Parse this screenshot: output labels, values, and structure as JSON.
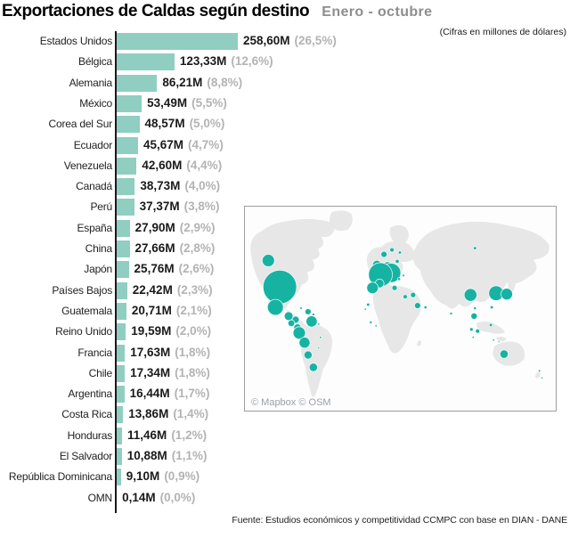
{
  "header": {
    "title": "Exportaciones de Caldas según destino",
    "period": "Enero - octubre",
    "units_note": "(Cifras en millones de dólares)"
  },
  "chart_data": {
    "type": "bar",
    "orientation": "horizontal",
    "title": "Exportaciones de Caldas según destino",
    "subtitle": "Enero - octubre",
    "units": "millones de dólares",
    "xlabel": "",
    "ylabel": "",
    "xlim": [
      0,
      260
    ],
    "grid": false,
    "legend": false,
    "bar_color": "#8FCEC1",
    "categories": [
      "Estados Unidos",
      "Bélgica",
      "Alemania",
      "México",
      "Corea del Sur",
      "Ecuador",
      "Venezuela",
      "Canadá",
      "Perú",
      "España",
      "China",
      "Japón",
      "Países Bajos",
      "Guatemala",
      "Reino Unido",
      "Francia",
      "Chile",
      "Argentina",
      "Costa Rica",
      "Honduras",
      "El Salvador",
      "República Dominicana",
      "OMN"
    ],
    "values": [
      258.6,
      123.33,
      86.21,
      53.49,
      48.57,
      45.67,
      42.6,
      38.73,
      37.37,
      27.9,
      27.66,
      25.76,
      22.42,
      20.71,
      19.59,
      17.63,
      17.34,
      16.44,
      13.86,
      11.46,
      10.88,
      9.1,
      0.14
    ],
    "value_labels": [
      "258,60M",
      "123,33M",
      "86,21M",
      "53,49M",
      "48,57M",
      "45,67M",
      "42,60M",
      "38,73M",
      "37,37M",
      "27,90M",
      "27,66M",
      "25,76M",
      "22,42M",
      "20,71M",
      "19,59M",
      "17,63M",
      "17,34M",
      "16,44M",
      "13,86M",
      "11,46M",
      "10,88M",
      "9,10M",
      "0,14M"
    ],
    "pct_labels": [
      "(26,5%)",
      "(12,6%)",
      "(8,8%)",
      "(5,5%)",
      "(5,0%)",
      "(4,7%)",
      "(4,4%)",
      "(4,0%)",
      "(3,8%)",
      "(2,9%)",
      "(2,8%)",
      "(2,6%)",
      "(2,3%)",
      "(2,1%)",
      "(2,0%)",
      "(1,8%)",
      "(1,8%)",
      "(1,7%)",
      "(1,4%)",
      "(1,2%)",
      "(1,1%)",
      "(0,9%)",
      "(0,0%)"
    ]
  },
  "map": {
    "attribution": "© Mapbox © OSM",
    "bubble_color": "#16B3A3",
    "land_color": "#E7E7E7",
    "bubbles": [
      {
        "name": "canada",
        "x": 26,
        "y": 61,
        "r": 7
      },
      {
        "name": "estados-unidos",
        "x": 39,
        "y": 91,
        "r": 19
      },
      {
        "name": "mexico",
        "x": 34,
        "y": 114,
        "r": 9
      },
      {
        "name": "guatemala",
        "x": 49,
        "y": 124,
        "r": 5
      },
      {
        "name": "honduras",
        "x": 57,
        "y": 128,
        "r": 4
      },
      {
        "name": "el-salvador",
        "x": 52,
        "y": 132,
        "r": 3.8
      },
      {
        "name": "costa-rica",
        "x": 59,
        "y": 137,
        "r": 4.2
      },
      {
        "name": "panama",
        "x": 64,
        "y": 142,
        "r": 1.6
      },
      {
        "name": "cuba",
        "x": 63,
        "y": 115,
        "r": 1.4
      },
      {
        "name": "republica-dominicana",
        "x": 71,
        "y": 119,
        "r": 3.5
      },
      {
        "name": "puerto-rico",
        "x": 77,
        "y": 122,
        "r": 1.5
      },
      {
        "name": "venezuela",
        "x": 75,
        "y": 130,
        "r": 6.3
      },
      {
        "name": "guyana",
        "x": 83,
        "y": 133,
        "r": 1.2
      },
      {
        "name": "ecuador",
        "x": 61,
        "y": 143,
        "r": 7
      },
      {
        "name": "peru",
        "x": 67,
        "y": 154,
        "r": 6.2
      },
      {
        "name": "brasil",
        "x": 85,
        "y": 148,
        "r": 1.3
      },
      {
        "name": "brasil-2",
        "x": 83,
        "y": 160,
        "r": 1.1
      },
      {
        "name": "chile",
        "x": 71,
        "y": 168,
        "r": 4.6
      },
      {
        "name": "argentina",
        "x": 77,
        "y": 182,
        "r": 4.7
      },
      {
        "name": "reino-unido",
        "x": 149,
        "y": 66,
        "r": 5.2
      },
      {
        "name": "paises-bajos",
        "x": 161,
        "y": 68,
        "r": 5.6
      },
      {
        "name": "alemania",
        "x": 165,
        "y": 75,
        "r": 11
      },
      {
        "name": "belgica",
        "x": 153,
        "y": 77,
        "r": 13.5
      },
      {
        "name": "francia",
        "x": 152,
        "y": 87,
        "r": 5
      },
      {
        "name": "espana",
        "x": 144,
        "y": 92,
        "r": 6.5
      },
      {
        "name": "noruega",
        "x": 157,
        "y": 54,
        "r": 3.5
      },
      {
        "name": "suecia",
        "x": 166,
        "y": 49,
        "r": 2.5
      },
      {
        "name": "finlandia",
        "x": 175,
        "y": 52,
        "r": 1.8
      },
      {
        "name": "dinamarca",
        "x": 172,
        "y": 62,
        "r": 2.2
      },
      {
        "name": "italia",
        "x": 169,
        "y": 92,
        "r": 3
      },
      {
        "name": "europa-central",
        "x": 174,
        "y": 82,
        "r": 1.7
      },
      {
        "name": "europa-central-2",
        "x": 179,
        "y": 78,
        "r": 1.4
      },
      {
        "name": "grecia",
        "x": 181,
        "y": 102,
        "r": 2.4
      },
      {
        "name": "turquia",
        "x": 190,
        "y": 100,
        "r": 3
      },
      {
        "name": "israel",
        "x": 195,
        "y": 112,
        "r": 3.5
      },
      {
        "name": "arabia",
        "x": 204,
        "y": 114,
        "r": 1.7
      },
      {
        "name": "marruecos",
        "x": 139,
        "y": 111,
        "r": 1.8
      },
      {
        "name": "africa-occidental",
        "x": 136,
        "y": 116,
        "r": 1.2
      },
      {
        "name": "africa-occidental-2",
        "x": 142,
        "y": 131,
        "r": 1.5
      },
      {
        "name": "africa-occidental-3",
        "x": 148,
        "y": 135,
        "r": 1.2
      },
      {
        "name": "rusia",
        "x": 260,
        "y": 47,
        "r": 1.8
      },
      {
        "name": "india",
        "x": 233,
        "y": 121,
        "r": 1.5
      },
      {
        "name": "china",
        "x": 255,
        "y": 100,
        "r": 7.2
      },
      {
        "name": "corea-del-sur",
        "x": 284,
        "y": 98,
        "r": 8.4
      },
      {
        "name": "japon",
        "x": 296,
        "y": 99,
        "r": 6.6
      },
      {
        "name": "taiwan",
        "x": 279,
        "y": 114,
        "r": 1.8
      },
      {
        "name": "hong-kong",
        "x": 260,
        "y": 115,
        "r": 1.6
      },
      {
        "name": "sudeste-asiatico",
        "x": 259,
        "y": 124,
        "r": 3.6
      },
      {
        "name": "tailandia",
        "x": 256,
        "y": 139,
        "r": 2
      },
      {
        "name": "vietnam",
        "x": 263,
        "y": 141,
        "r": 2.4
      },
      {
        "name": "filipinas",
        "x": 278,
        "y": 134,
        "r": 1.8
      },
      {
        "name": "malasia",
        "x": 258,
        "y": 148,
        "r": 1.2
      },
      {
        "name": "indonesia",
        "x": 281,
        "y": 151,
        "r": 1.2
      },
      {
        "name": "indonesia-2",
        "x": 287,
        "y": 153,
        "r": 1
      },
      {
        "name": "australia",
        "x": 293,
        "y": 167,
        "r": 4.7
      },
      {
        "name": "nueva-zelanda",
        "x": 333,
        "y": 186,
        "r": 1.3
      },
      {
        "name": "nueva-zelanda-2",
        "x": 336,
        "y": 194,
        "r": 1.1
      }
    ]
  },
  "footer": {
    "source": "Fuente: Estudios económicos y competitividad CCMPC con base en DIAN - DANE"
  }
}
